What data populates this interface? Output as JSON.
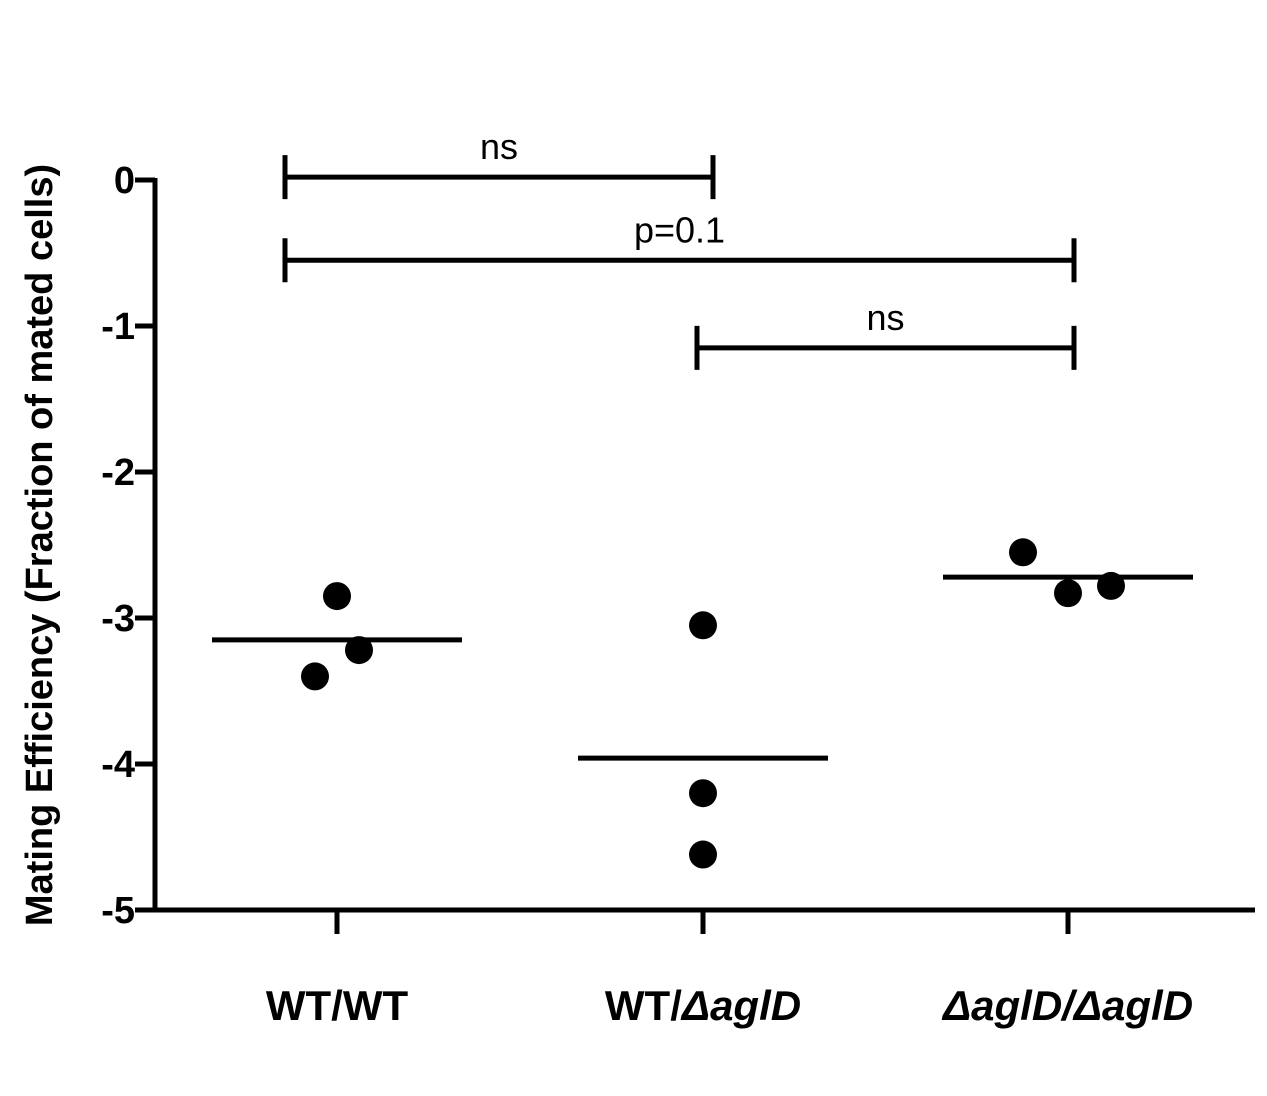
{
  "chart_data": {
    "type": "scatter",
    "title": "",
    "ylabel": "Mating Efficiency (Fraction of mated cells)",
    "xlabel": "",
    "ylim": [
      -5,
      0
    ],
    "yticks": [
      "0",
      "-1",
      "-2",
      "-3",
      "-4",
      "-5"
    ],
    "grid": false,
    "legend": "none",
    "categories": [
      {
        "prefix": "",
        "label": "WT/WT"
      },
      {
        "prefix": "WT/",
        "label": "ΔaglD"
      },
      {
        "prefix": "",
        "label": "ΔaglD/ΔaglD"
      }
    ],
    "series": [
      {
        "category": "WT/WT",
        "points": [
          -2.85,
          -3.22,
          -3.4
        ],
        "mean": -3.15
      },
      {
        "category": "WT/ΔaglD",
        "points": [
          -3.05,
          -4.2,
          -4.62
        ],
        "mean": -3.96
      },
      {
        "category": "ΔaglD/ΔaglD",
        "points": [
          -2.55,
          -2.78,
          -2.83
        ],
        "mean": -2.72
      }
    ],
    "significance": [
      {
        "from": "WT/WT",
        "to": "WT/ΔaglD",
        "y": 0.02,
        "label": "ns"
      },
      {
        "from": "WT/WT",
        "to": "ΔaglD/ΔaglD",
        "y": -0.55,
        "label": "p=0.1"
      },
      {
        "from": "WT/ΔaglD",
        "to": "ΔaglD/ΔaglD",
        "y": -1.15,
        "label": "ns"
      }
    ],
    "colors": {
      "marks": "#000000"
    }
  }
}
